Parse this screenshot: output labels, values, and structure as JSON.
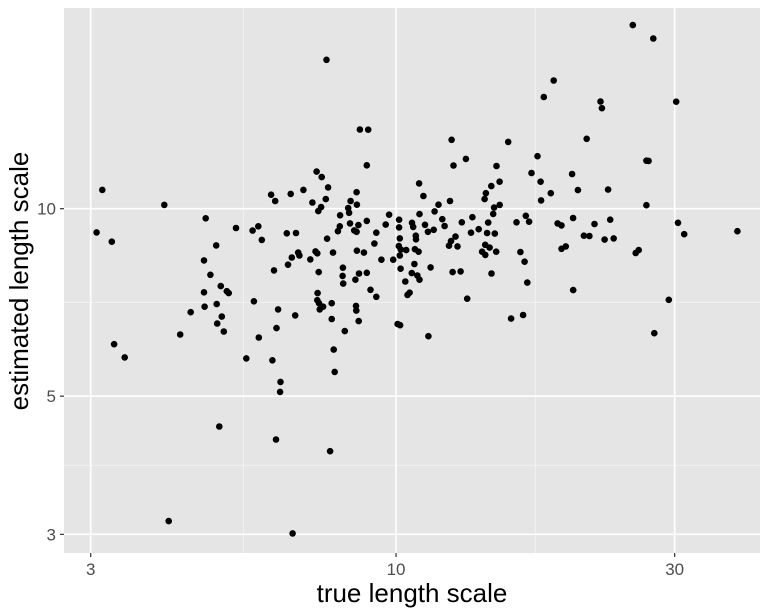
{
  "chart_data": {
    "type": "scatter",
    "title": "",
    "xlabel": "true length scale",
    "ylabel": "estimated length scale",
    "x_scale": "log10",
    "y_scale": "log10",
    "xlim": [
      2.7,
      42
    ],
    "ylim": [
      2.8,
      21
    ],
    "x_ticks": [
      3,
      10,
      30
    ],
    "y_ticks": [
      3,
      5,
      10
    ],
    "x_tick_labels": [
      "3",
      "10",
      "30"
    ],
    "y_tick_labels": [
      "3",
      "5",
      "10"
    ],
    "grid": true,
    "legend": "none",
    "colors": {
      "panel": "#e5e5e5",
      "grid_major": "#ffffff",
      "grid_minor": "#f2f2f2",
      "point": "#000000",
      "tick": "#4d4d4d"
    },
    "points": [
      [
        3.07,
        9.16
      ],
      [
        3.14,
        10.72
      ],
      [
        3.26,
        8.85
      ],
      [
        3.29,
        6.06
      ],
      [
        3.43,
        5.77
      ],
      [
        4.01,
        10.14
      ],
      [
        4.08,
        3.15
      ],
      [
        4.27,
        6.28
      ],
      [
        4.45,
        6.82
      ],
      [
        4.69,
        7.34
      ],
      [
        4.69,
        8.26
      ],
      [
        4.81,
        7.83
      ],
      [
        4.72,
        9.65
      ],
      [
        4.7,
        6.96
      ],
      [
        4.92,
        8.73
      ],
      [
        4.93,
        7.03
      ],
      [
        5.01,
        7.51
      ],
      [
        5.03,
        6.71
      ],
      [
        4.94,
        6.54
      ],
      [
        4.98,
        4.47
      ],
      [
        5.13,
        7.37
      ],
      [
        5.17,
        7.32
      ],
      [
        5.07,
        6.35
      ],
      [
        5.32,
        9.31
      ],
      [
        5.54,
        5.75
      ],
      [
        5.68,
        9.22
      ],
      [
        5.71,
        7.1
      ],
      [
        5.81,
        9.37
      ],
      [
        5.82,
        6.21
      ],
      [
        5.89,
        8.91
      ],
      [
        6.14,
        5.71
      ],
      [
        6.18,
        7.96
      ],
      [
        6.11,
        10.53
      ],
      [
        6.21,
        10.29
      ],
      [
        6.24,
        6.43
      ],
      [
        6.28,
        6.89
      ],
      [
        6.23,
        4.26
      ],
      [
        6.34,
        5.27
      ],
      [
        6.33,
        5.08
      ],
      [
        6.5,
        9.13
      ],
      [
        6.53,
        8.13
      ],
      [
        6.63,
        8.35
      ],
      [
        6.6,
        10.56
      ],
      [
        6.65,
        3.01
      ],
      [
        6.74,
        9.14
      ],
      [
        6.72,
        6.74
      ],
      [
        6.8,
        8.5
      ],
      [
        6.83,
        8.41
      ],
      [
        6.94,
        10.72
      ],
      [
        7.13,
        8.29
      ],
      [
        7.28,
        8.54
      ],
      [
        7.19,
        10.23
      ],
      [
        7.31,
        11.47
      ],
      [
        7.36,
        9.91
      ],
      [
        7.33,
        8.48
      ],
      [
        7.37,
        7.91
      ],
      [
        7.34,
        7.32
      ],
      [
        7.44,
        10.06
      ],
      [
        7.46,
        11.24
      ],
      [
        7.33,
        7.13
      ],
      [
        7.38,
        7.05
      ],
      [
        7.4,
        6.89
      ],
      [
        7.58,
        10.36
      ],
      [
        7.5,
        6.96
      ],
      [
        7.62,
        8.95
      ],
      [
        7.65,
        10.82
      ],
      [
        7.76,
        7.05
      ],
      [
        7.8,
        8.5
      ],
      [
        7.76,
        6.65
      ],
      [
        7.82,
        5.94
      ],
      [
        7.85,
        5.47
      ],
      [
        7.6,
        17.34
      ],
      [
        7.71,
        4.08
      ],
      [
        8.01,
        9.37
      ],
      [
        8.02,
        9.76
      ],
      [
        8.11,
        8.04
      ],
      [
        8.1,
        7.8
      ],
      [
        8.12,
        7.58
      ],
      [
        8.17,
        6.36
      ],
      [
        8.28,
        10.02
      ],
      [
        8.34,
        9.47
      ],
      [
        8.31,
        9.85
      ],
      [
        8.36,
        10.29
      ],
      [
        8.56,
        9.18
      ],
      [
        8.52,
        7.69
      ],
      [
        8.55,
        6.86
      ],
      [
        8.63,
        6.6
      ],
      [
        8.56,
        10.63
      ],
      [
        8.57,
        10.15
      ],
      [
        8.64,
        7.87
      ],
      [
        8.62,
        9.41
      ],
      [
        8.48,
        9.23
      ],
      [
        8.57,
        8.56
      ],
      [
        8.54,
        6.98
      ],
      [
        8.67,
        13.4
      ],
      [
        8.81,
        8.5
      ],
      [
        8.91,
        9.56
      ],
      [
        8.91,
        7.89
      ],
      [
        8.96,
        13.39
      ],
      [
        8.91,
        11.74
      ],
      [
        9.04,
        7.41
      ],
      [
        9.18,
        8.79
      ],
      [
        9.25,
        7.22
      ],
      [
        9.25,
        9.15
      ],
      [
        9.44,
        8.28
      ],
      [
        9.6,
        9.43
      ],
      [
        9.73,
        9.78
      ],
      [
        9.89,
        8.28
      ],
      [
        10.12,
        9.6
      ],
      [
        10.12,
        9.33
      ],
      [
        10.15,
        8.96
      ],
      [
        10.11,
        8.71
      ],
      [
        10.19,
        8.6
      ],
      [
        10.15,
        8.41
      ],
      [
        10.06,
        6.53
      ],
      [
        10.16,
        6.5
      ],
      [
        10.18,
        8.01
      ],
      [
        10.37,
        7.64
      ],
      [
        10.41,
        8.58
      ],
      [
        10.46,
        7.27
      ],
      [
        10.55,
        7.33
      ],
      [
        10.65,
        9.49
      ],
      [
        10.64,
        7.88
      ],
      [
        10.7,
        9.35
      ],
      [
        10.77,
        8.61
      ],
      [
        10.75,
        8.15
      ],
      [
        10.81,
        9.05
      ],
      [
        10.93,
        8.53
      ],
      [
        10.97,
        9.8
      ],
      [
        10.97,
        7.69
      ],
      [
        10.82,
        8.93
      ],
      [
        10.95,
        10.98
      ],
      [
        10.88,
        7.81
      ],
      [
        11.14,
        10.48
      ],
      [
        11.21,
        9.42
      ],
      [
        11.36,
        6.24
      ],
      [
        11.34,
        9.18
      ],
      [
        11.46,
        8.05
      ],
      [
        11.6,
        9.25
      ],
      [
        11.64,
        9.9
      ],
      [
        11.82,
        10.15
      ],
      [
        12.0,
        9.62
      ],
      [
        12.11,
        9.38
      ],
      [
        12.32,
        8.72
      ],
      [
        12.45,
        12.9
      ],
      [
        12.37,
        10.29
      ],
      [
        12.42,
        8.87
      ],
      [
        12.5,
        7.91
      ],
      [
        12.54,
        11.73
      ],
      [
        12.64,
        9.02
      ],
      [
        12.74,
        8.7
      ],
      [
        12.9,
        7.93
      ],
      [
        12.96,
        9.51
      ],
      [
        13.17,
        12.02
      ],
      [
        13.24,
        7.17
      ],
      [
        13.51,
        9.69
      ],
      [
        13.44,
        9.15
      ],
      [
        13.85,
        9.27
      ],
      [
        14.04,
        8.53
      ],
      [
        14.21,
        8.75
      ],
      [
        14.22,
        8.43
      ],
      [
        14.18,
        10.36
      ],
      [
        14.25,
        10.59
      ],
      [
        14.32,
        9.14
      ],
      [
        14.46,
        8.66
      ],
      [
        14.38,
        9.5
      ],
      [
        14.57,
        7.87
      ],
      [
        14.67,
        9.81
      ],
      [
        14.72,
        10.04
      ],
      [
        14.56,
        10.87
      ],
      [
        14.76,
        9.12
      ],
      [
        14.84,
        8.53
      ],
      [
        14.86,
        11.71
      ],
      [
        15.05,
        10.14
      ],
      [
        15.04,
        11.05
      ],
      [
        15.56,
        12.8
      ],
      [
        15.74,
        6.66
      ],
      [
        16.08,
        9.51
      ],
      [
        16.33,
        8.52
      ],
      [
        16.6,
        8.22
      ],
      [
        16.68,
        9.74
      ],
      [
        16.78,
        7.61
      ],
      [
        16.5,
        6.75
      ],
      [
        16.9,
        9.53
      ],
      [
        17.06,
        11.41
      ],
      [
        17.47,
        12.14
      ],
      [
        17.72,
        10.31
      ],
      [
        17.68,
        11.05
      ],
      [
        17.91,
        15.11
      ],
      [
        18.41,
        10.59
      ],
      [
        18.91,
        9.47
      ],
      [
        18.62,
        16.06
      ],
      [
        19.2,
        9.4
      ],
      [
        19.2,
        8.62
      ],
      [
        19.53,
        8.7
      ],
      [
        20.02,
        11.37
      ],
      [
        20.1,
        9.66
      ],
      [
        20.11,
        7.4
      ],
      [
        20.48,
        10.71
      ],
      [
        20.97,
        9.05
      ],
      [
        21.21,
        12.95
      ],
      [
        21.43,
        9.04
      ],
      [
        21.87,
        9.45
      ],
      [
        22.39,
        14.86
      ],
      [
        22.52,
        14.5
      ],
      [
        22.76,
        8.92
      ],
      [
        23.07,
        10.73
      ],
      [
        23.59,
        8.96
      ],
      [
        25.73,
        8.49
      ],
      [
        26.03,
        8.58
      ],
      [
        26.84,
        10.13
      ],
      [
        26.84,
        11.94
      ],
      [
        27.07,
        11.93
      ],
      [
        25.43,
        19.71
      ],
      [
        27.68,
        6.31
      ],
      [
        27.58,
        18.76
      ],
      [
        29.31,
        7.14
      ],
      [
        30.18,
        14.85
      ],
      [
        31.15,
        9.1
      ],
      [
        30.4,
        9.49
      ],
      [
        38.42,
        9.2
      ],
      [
        23.27,
        9.6
      ],
      [
        7.95,
        9.2
      ]
    ]
  }
}
